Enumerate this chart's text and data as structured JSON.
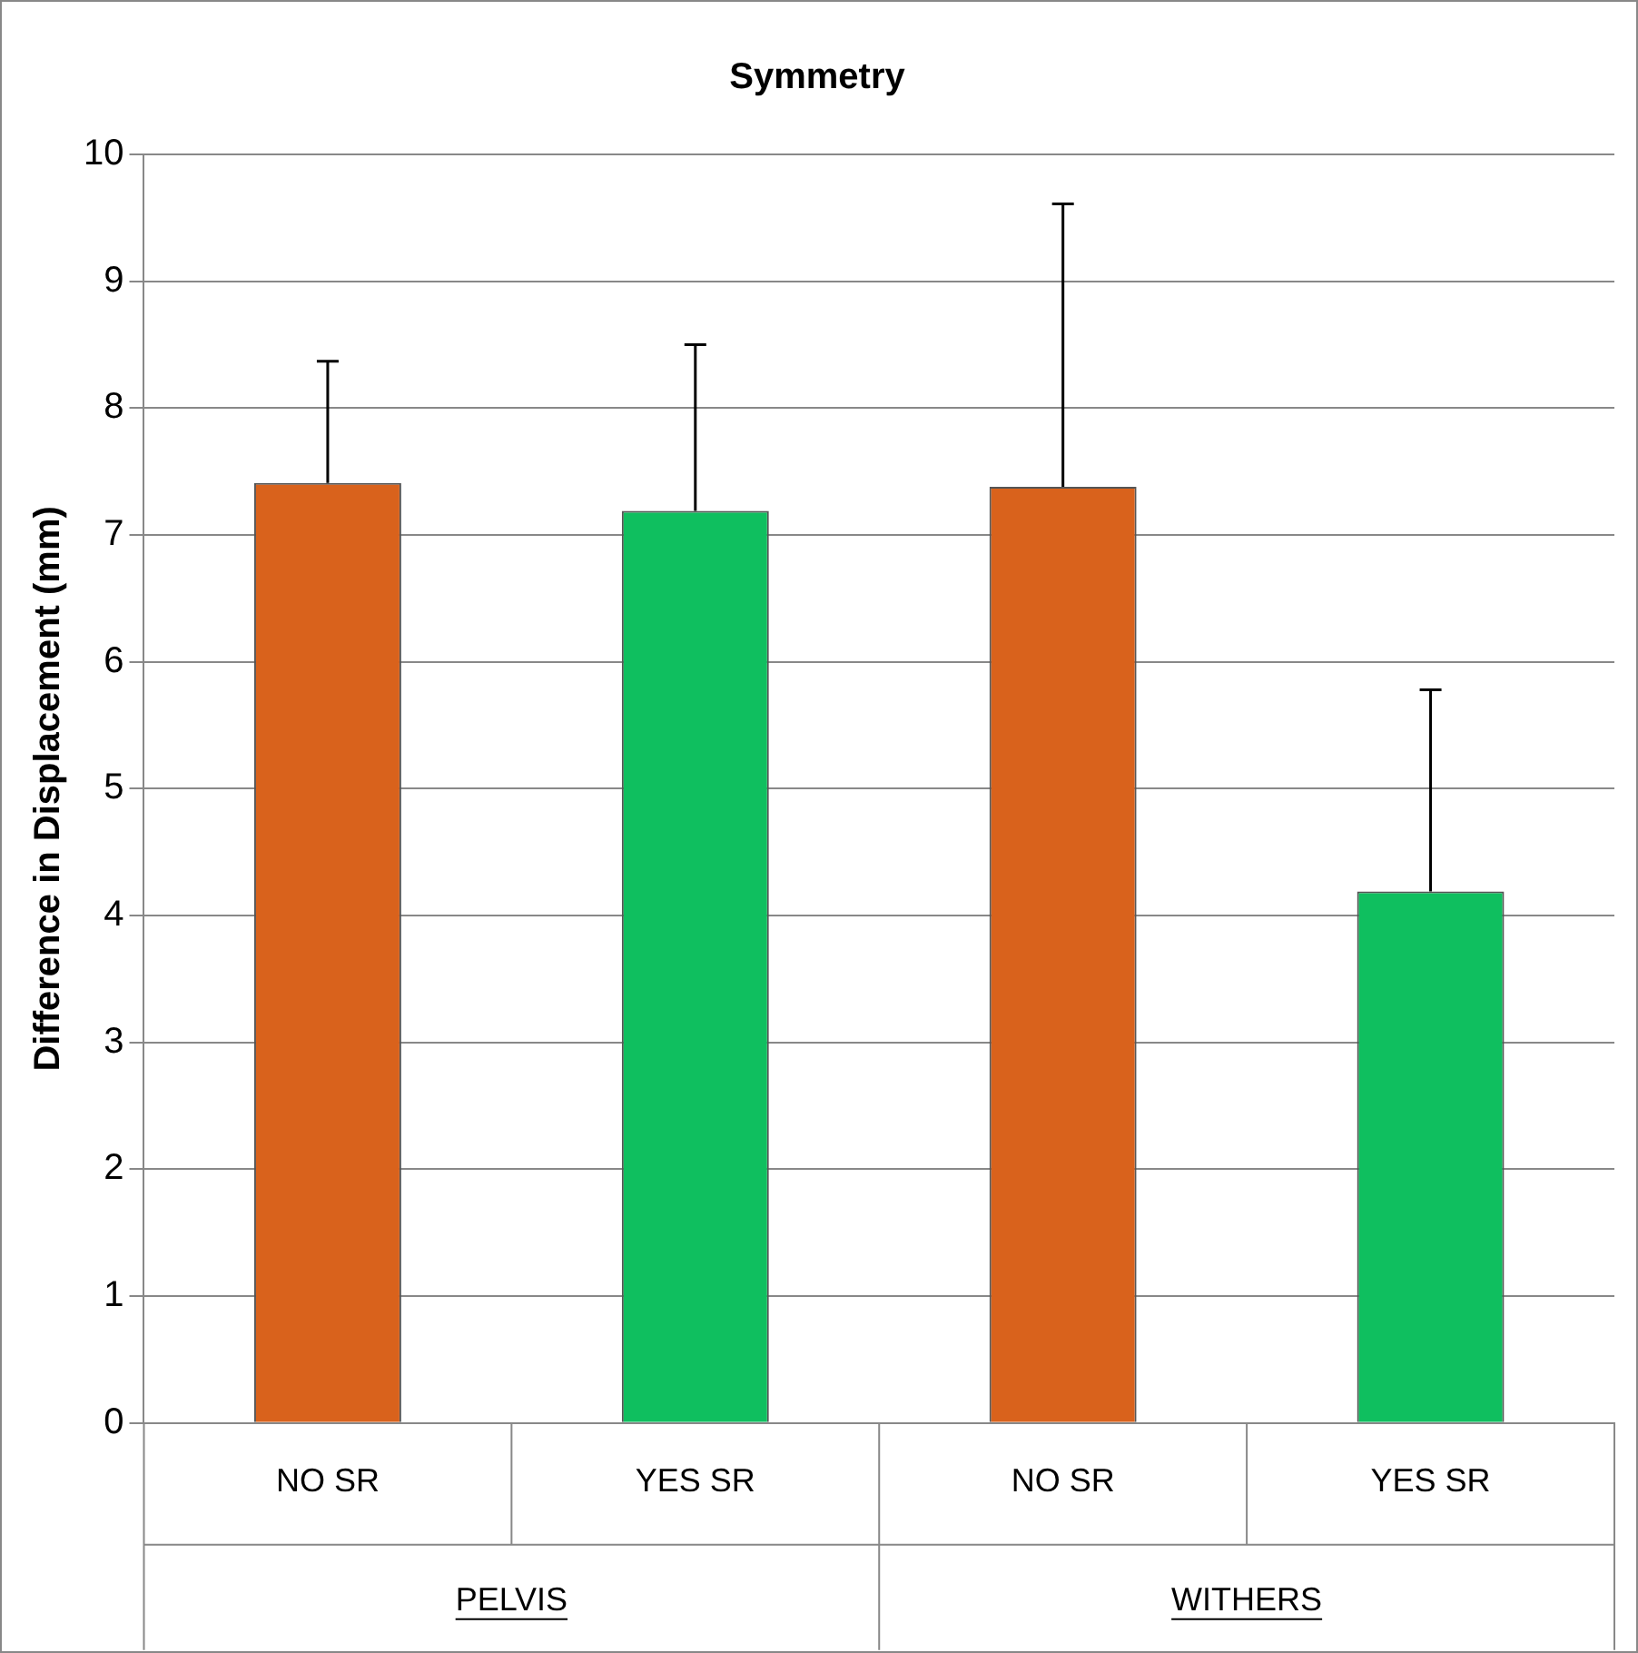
{
  "chart_data": {
    "type": "bar",
    "title": "Symmetry",
    "ylabel": "Difference in Displacement (mm)",
    "categories": [
      "NO SR",
      "YES SR",
      "NO SR",
      "YES SR"
    ],
    "values": [
      7.41,
      7.19,
      7.38,
      4.19
    ],
    "colors": [
      "#d9621c",
      "#0fbf5f",
      "#d9621c",
      "#0fbf5f"
    ],
    "errors": [
      [
        7.41,
        8.37
      ],
      [
        7.19,
        8.5
      ],
      [
        7.38,
        9.61
      ],
      [
        4.19,
        5.78
      ]
    ],
    "annotations": [
      "PELVIS",
      "WITHERS"
    ],
    "ylim": [
      0,
      10
    ],
    "yticks": [
      0,
      1,
      2,
      3,
      4,
      5,
      6,
      7,
      8,
      9,
      10
    ],
    "grid": "y",
    "legend": false
  }
}
